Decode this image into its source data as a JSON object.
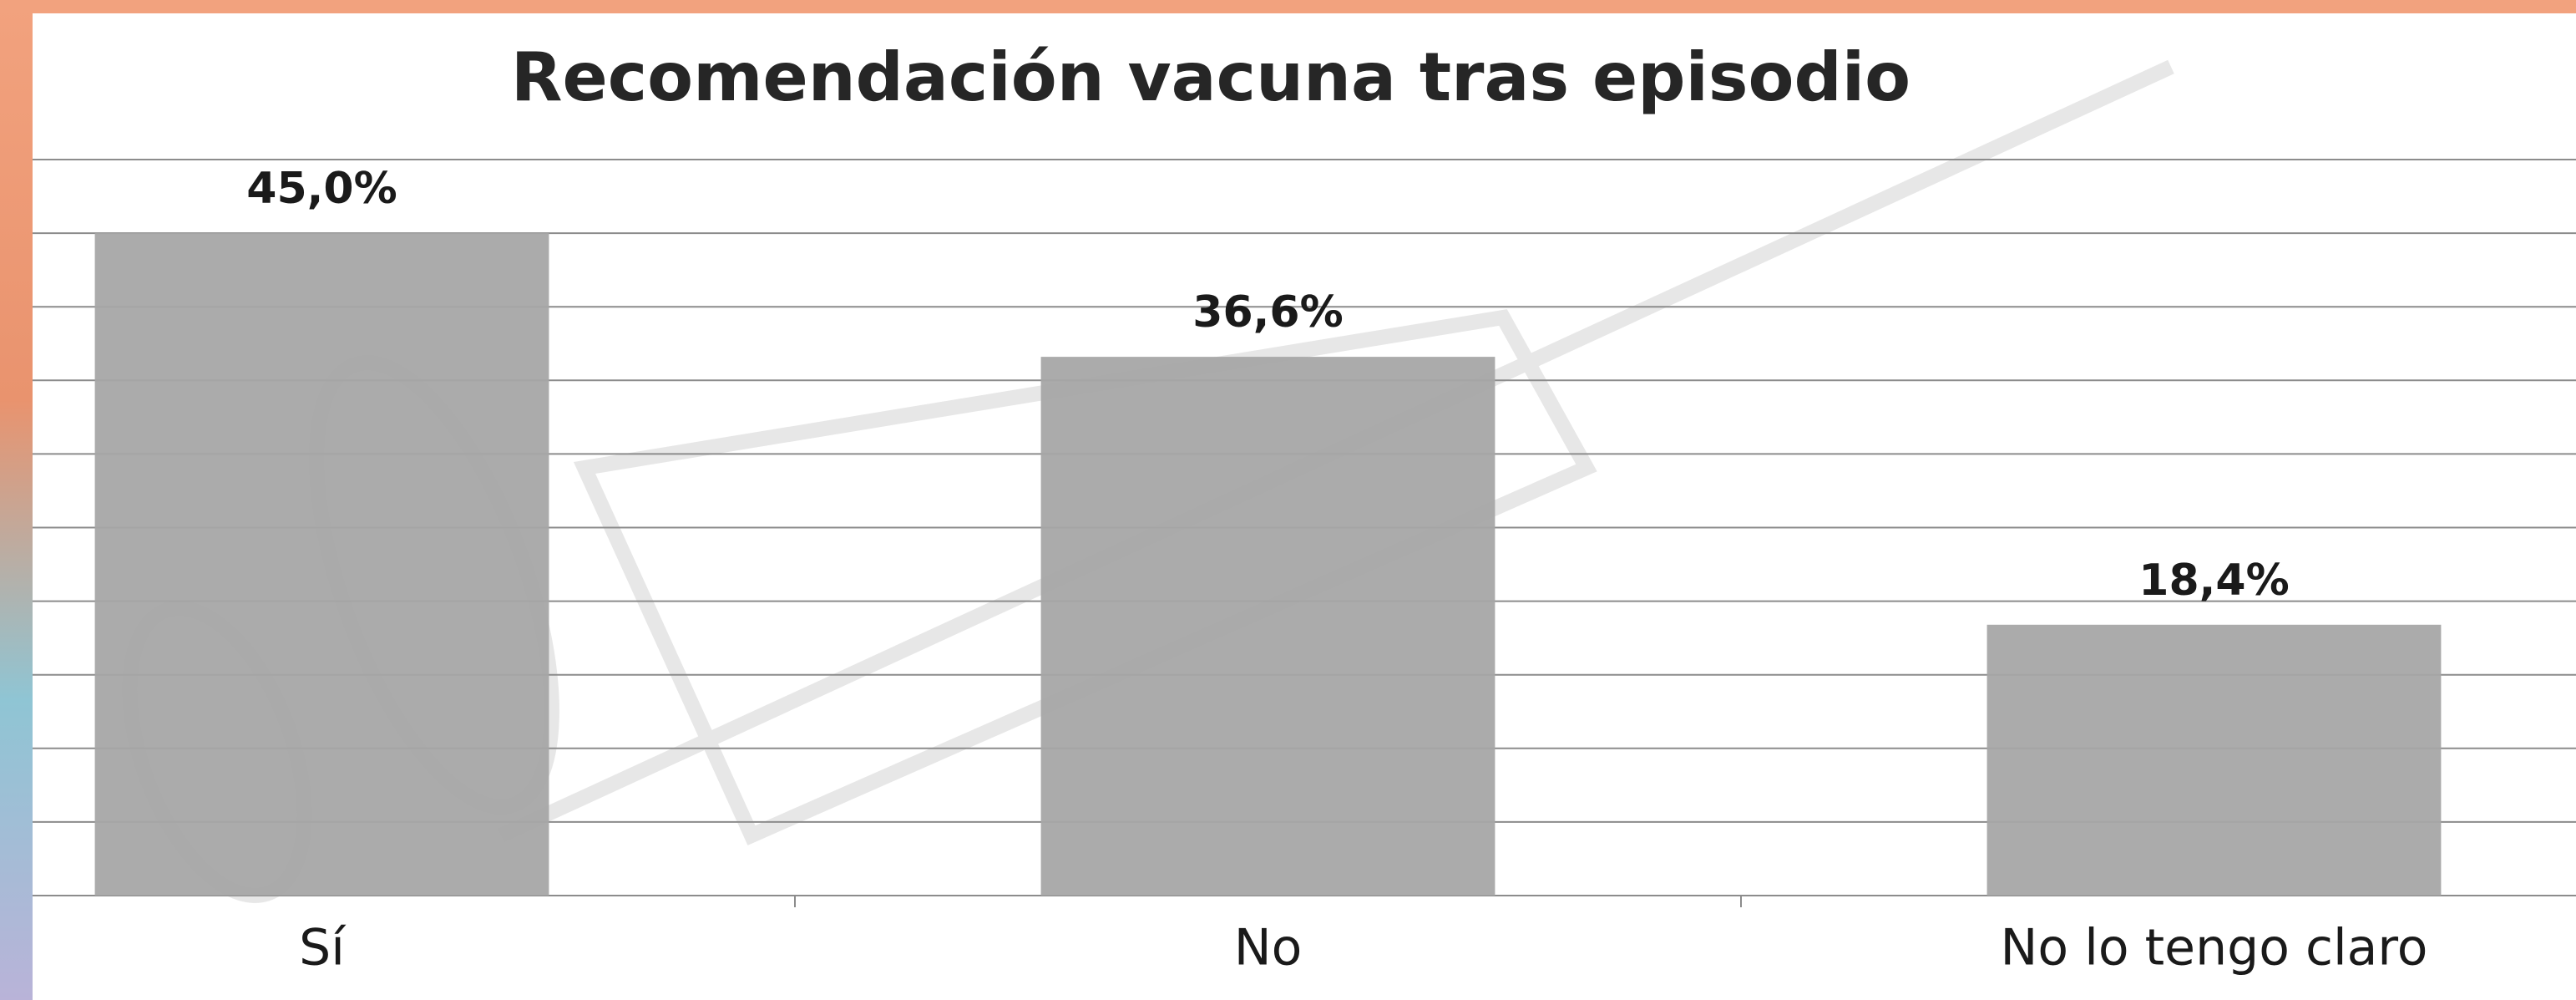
{
  "chart_data": {
    "type": "bar",
    "title": "Recomendación vacuna tras episodio",
    "categories": [
      "Sí",
      "No",
      "No lo tengo claro"
    ],
    "values": [
      45.0,
      36.6,
      18.4
    ],
    "value_labels": [
      "45,0%",
      "36,6%",
      "18,4%"
    ],
    "color": "#a6a6a6",
    "ylim": [
      0,
      50
    ],
    "yticks": [
      0,
      5,
      10,
      15,
      20,
      25,
      30,
      35,
      40,
      45,
      50
    ],
    "grid": true
  }
}
